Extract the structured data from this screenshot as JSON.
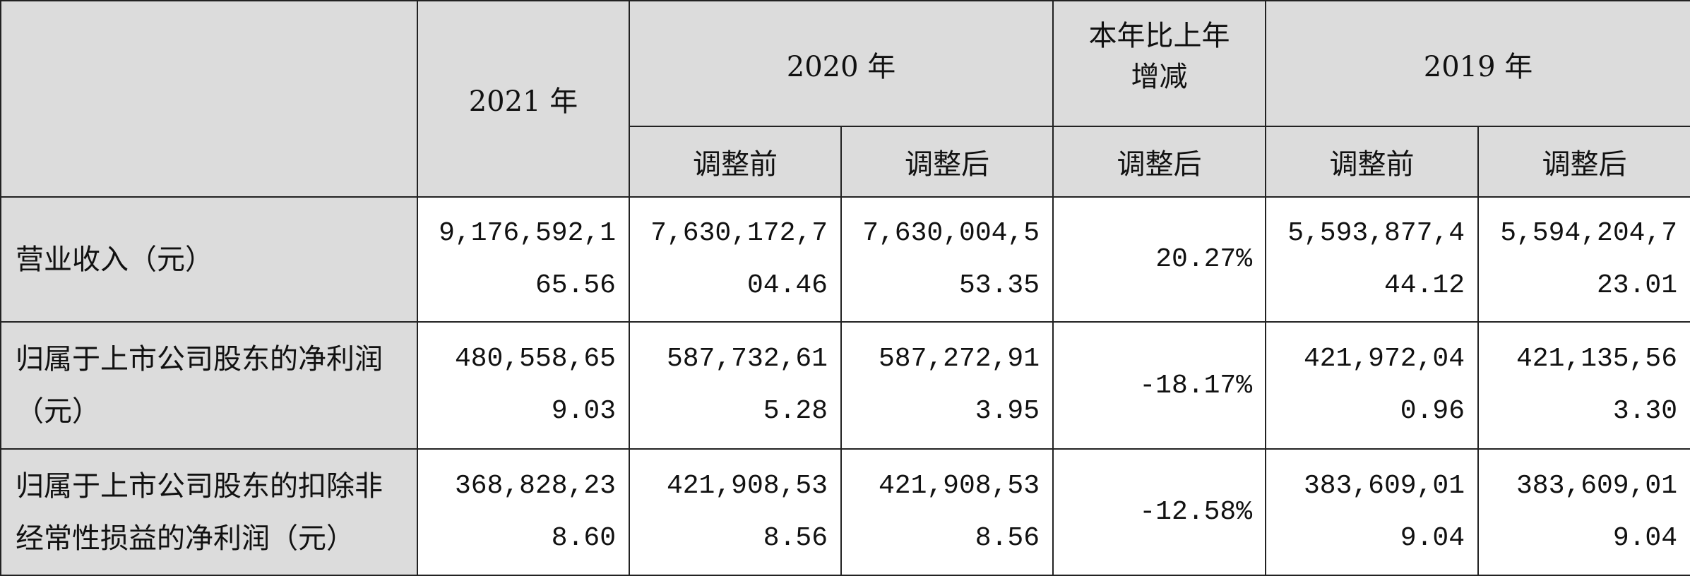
{
  "header": {
    "y2021": "2021 年",
    "y2020": "2020 年",
    "change": "本年比上年增减",
    "y2019": "2019 年",
    "before": "调整前",
    "after": "调整后"
  },
  "rows": [
    {
      "label": "营业收入（元）",
      "v2021": "9,176,592,165.56",
      "v2020_before": "7,630,172,704.46",
      "v2020_after": "7,630,004,553.35",
      "change": "20.27%",
      "v2019_before": "5,593,877,444.12",
      "v2019_after": "5,594,204,723.01"
    },
    {
      "label": "归属于上市公司股东的净利润（元）",
      "v2021": "480,558,659.03",
      "v2020_before": "587,732,615.28",
      "v2020_after": "587,272,913.95",
      "change": "-18.17%",
      "v2019_before": "421,972,040.96",
      "v2019_after": "421,135,563.30"
    },
    {
      "label": "归属于上市公司股东的扣除非经常性损益的净利润（元）",
      "v2021": "368,828,238.60",
      "v2020_before": "421,908,538.56",
      "v2020_after": "421,908,538.56",
      "change": "-12.58%",
      "v2019_before": "383,609,019.04",
      "v2019_after": "383,609,019.04"
    }
  ]
}
